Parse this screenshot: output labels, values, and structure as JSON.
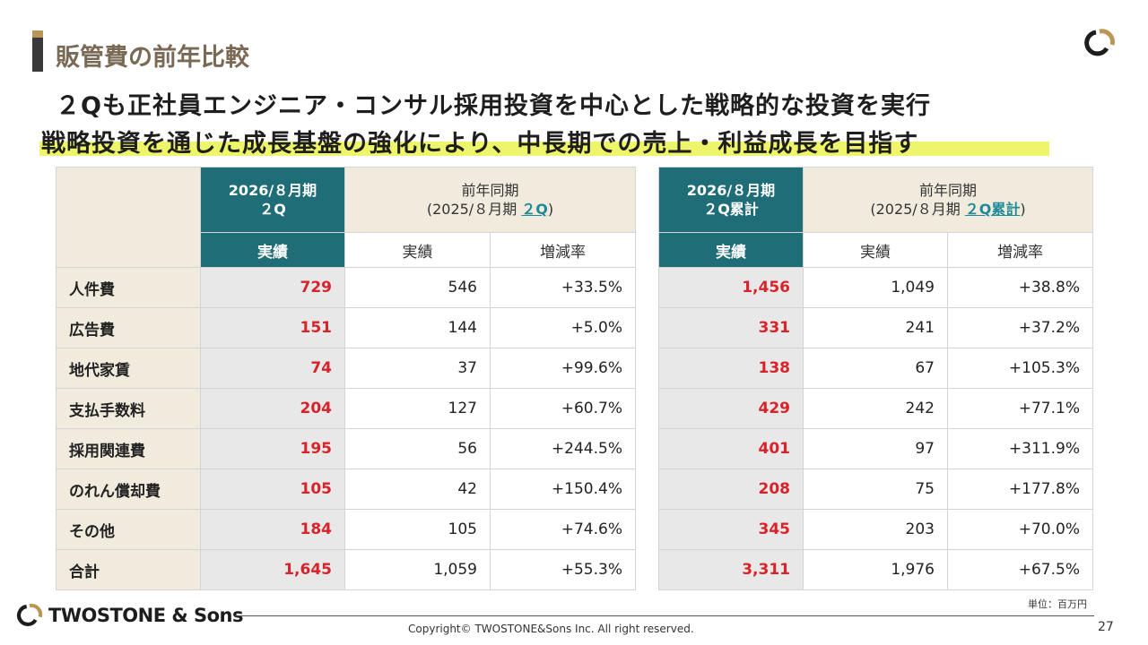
{
  "page_title": "販管費の前年比較",
  "headline_1": "２Qも正社員エンジニア・コンサル採用投資を中心とした戦略的な投資を実行",
  "headline_2": "戦略投資を通じた成長基盤の強化により、中長期での売上・利益成長を目指す",
  "left_table": {
    "cur_header_line1": "2026/８月期",
    "cur_header_line2": "２Q",
    "prev_header_line1": "前年同期",
    "prev_header_prefix": "(2025/８月期 ",
    "prev_header_link": "２Q",
    "prev_header_suffix": ")",
    "sub_actual_cur": "実績",
    "sub_actual_prev": "実績",
    "sub_change": "増減率"
  },
  "right_table": {
    "cur_header_line1": "2026/８月期",
    "cur_header_line2": "２Q累計",
    "prev_header_line1": "前年同期",
    "prev_header_prefix": "(2025/８月期 ",
    "prev_header_link": "２Q累計",
    "prev_header_suffix": ")",
    "sub_actual_cur": "実績",
    "sub_actual_prev": "実績",
    "sub_change": "増減率"
  },
  "rows": [
    {
      "label": "人件費",
      "q_cur": "729",
      "q_prev": "546",
      "q_chg": "+33.5%",
      "c_cur": "1,456",
      "c_prev": "1,049",
      "c_chg": "+38.8%"
    },
    {
      "label": "広告費",
      "q_cur": "151",
      "q_prev": "144",
      "q_chg": "+5.0%",
      "c_cur": "331",
      "c_prev": "241",
      "c_chg": "+37.2%"
    },
    {
      "label": "地代家賃",
      "q_cur": "74",
      "q_prev": "37",
      "q_chg": "+99.6%",
      "c_cur": "138",
      "c_prev": "67",
      "c_chg": "+105.3%"
    },
    {
      "label": "支払手数料",
      "q_cur": "204",
      "q_prev": "127",
      "q_chg": "+60.7%",
      "c_cur": "429",
      "c_prev": "242",
      "c_chg": "+77.1%"
    },
    {
      "label": "採用関連費",
      "q_cur": "195",
      "q_prev": "56",
      "q_chg": "+244.5%",
      "c_cur": "401",
      "c_prev": "97",
      "c_chg": "+311.9%"
    },
    {
      "label": "のれん償却費",
      "q_cur": "105",
      "q_prev": "42",
      "q_chg": "+150.4%",
      "c_cur": "208",
      "c_prev": "75",
      "c_chg": "+177.8%"
    },
    {
      "label": "その他",
      "q_cur": "184",
      "q_prev": "105",
      "q_chg": "+74.6%",
      "c_cur": "345",
      "c_prev": "203",
      "c_chg": "+70.0%"
    },
    {
      "label": "合計",
      "q_cur": "1,645",
      "q_prev": "1,059",
      "q_chg": "+55.3%",
      "c_cur": "3,311",
      "c_prev": "1,976",
      "c_chg": "+67.5%"
    }
  ],
  "unit_note": "単位：百万円",
  "brand_name": "TWOSTONE & Sons",
  "copyright": "Copyright© TWOSTONE&Sons Inc. All right reserved.",
  "page_number": "27",
  "colors": {
    "accent_teal": "#1f6d77",
    "highlight_red": "#d8232a",
    "beige": "#f1ebde",
    "marker_yellow": "#eef56a",
    "gold": "#b99656"
  }
}
